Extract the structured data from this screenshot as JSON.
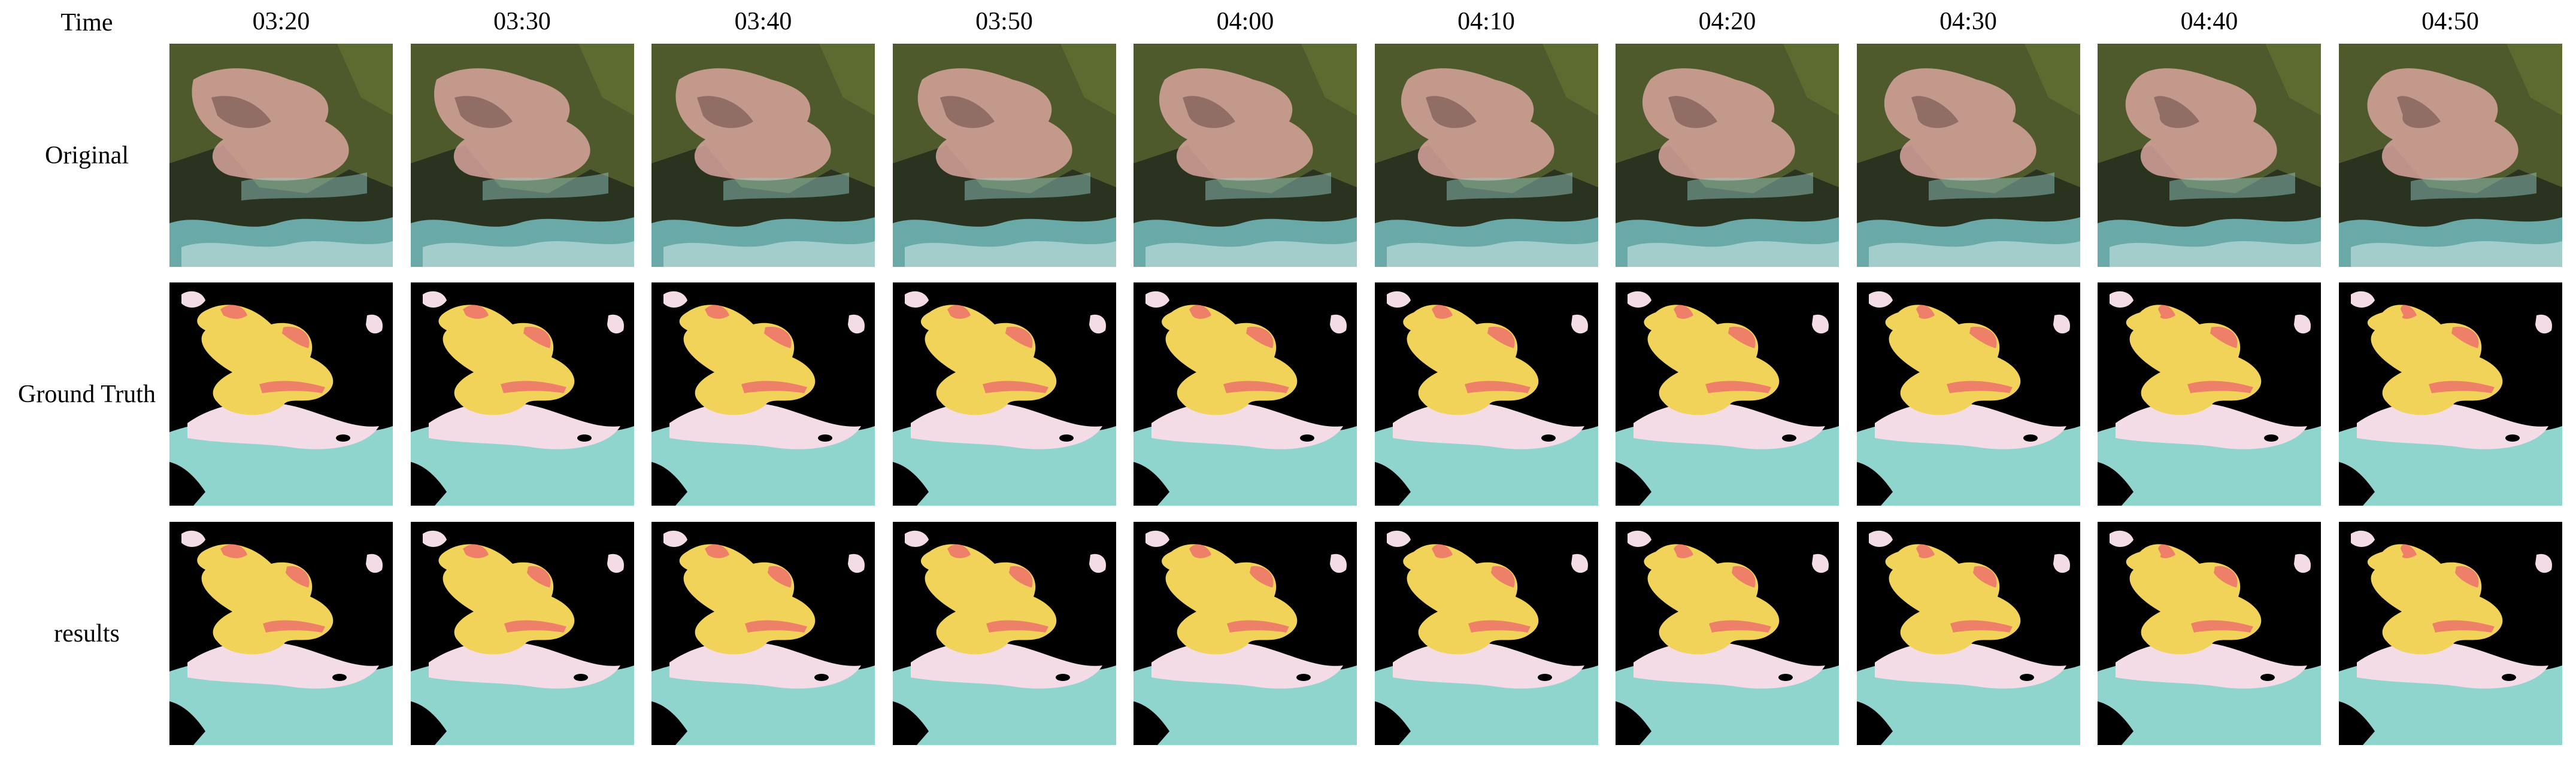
{
  "header_label": "Time",
  "times": [
    "03:20",
    "03:30",
    "03:40",
    "03:50",
    "04:00",
    "04:10",
    "04:20",
    "04:30",
    "04:40",
    "04:50"
  ],
  "rows": [
    {
      "label": "Original",
      "kind": "satellite"
    },
    {
      "label": "Ground Truth",
      "kind": "mask"
    },
    {
      "label": "results",
      "kind": "mask"
    }
  ],
  "colors": {
    "background": "#000000",
    "mask_yellow": "#f2d35a",
    "mask_coral": "#ee8069",
    "mask_pink": "#f3dce6",
    "mask_teal": "#8fd4cd",
    "sat_land": "#4e5a2b",
    "sat_dark": "#2a3320",
    "sat_cloud": "#d7a49c",
    "sat_cyan": "#7fd3d6"
  }
}
